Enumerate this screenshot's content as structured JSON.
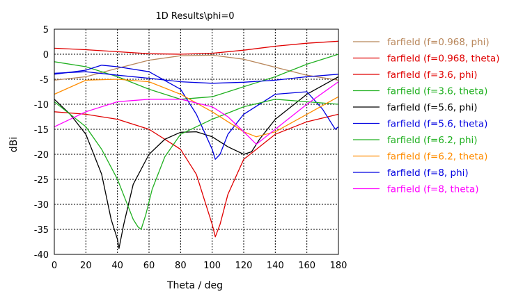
{
  "chart_data": {
    "type": "line",
    "title": "1D Results\\phi=0",
    "xlabel": "Theta / deg",
    "ylabel": "dBi",
    "xlim": [
      0,
      180
    ],
    "ylim": [
      -40,
      5
    ],
    "xticks": [
      0,
      20,
      40,
      60,
      80,
      100,
      120,
      140,
      160,
      180
    ],
    "yticks": [
      5,
      0,
      -5,
      -10,
      -15,
      -20,
      -25,
      -30,
      -35,
      -40
    ],
    "grid": true,
    "legend_position": "right",
    "series": [
      {
        "name": "farfield (f=0.968, phi)",
        "color": "#b8865a",
        "x": [
          0,
          20,
          40,
          60,
          80,
          100,
          120,
          140,
          160,
          180
        ],
        "y": [
          -5.2,
          -4.5,
          -2.8,
          -1.2,
          -0.3,
          -0.2,
          -1.0,
          -2.6,
          -4.2,
          -5.2
        ]
      },
      {
        "name": "farfield (f=0.968, theta)",
        "color": "#e00000",
        "x": [
          0,
          20,
          40,
          60,
          80,
          100,
          120,
          140,
          160,
          180
        ],
        "y": [
          1.2,
          0.9,
          0.5,
          0.1,
          0.0,
          0.2,
          0.8,
          1.6,
          2.2,
          2.6
        ]
      },
      {
        "name": "farfield (f=3.6, phi)",
        "color": "#e00000",
        "x": [
          0,
          20,
          40,
          60,
          80,
          90,
          95,
          100,
          102,
          105,
          110,
          120,
          140,
          160,
          180
        ],
        "y": [
          -11.5,
          -12.0,
          -13.0,
          -15.0,
          -19.0,
          -24.0,
          -29.0,
          -34.0,
          -36.5,
          -34.0,
          -28.0,
          -21.0,
          -16.0,
          -13.5,
          -12.0
        ]
      },
      {
        "name": "farfield (f=3.6, theta)",
        "color": "#20b020",
        "x": [
          0,
          20,
          40,
          60,
          80,
          100,
          120,
          140,
          160,
          180
        ],
        "y": [
          -1.5,
          -2.5,
          -4.5,
          -7.0,
          -9.0,
          -8.5,
          -6.5,
          -4.5,
          -2.0,
          0.0
        ]
      },
      {
        "name": "farfield (f=5.6, phi)",
        "color": "#000000",
        "x": [
          0,
          10,
          20,
          30,
          36,
          40,
          41,
          44,
          50,
          60,
          70,
          80,
          90,
          100,
          110,
          120,
          125,
          130,
          140,
          160,
          180
        ],
        "y": [
          -9.0,
          -12.0,
          -16.0,
          -24.0,
          -33.0,
          -37.0,
          -38.8,
          -34.0,
          -26.0,
          -20.0,
          -17.0,
          -15.6,
          -15.5,
          -16.5,
          -18.5,
          -20.0,
          -19.5,
          -17.0,
          -13.0,
          -8.0,
          -4.5
        ]
      },
      {
        "name": "farfield (f=5.6, theta)",
        "color": "#0000e0",
        "x": [
          0,
          20,
          30,
          40,
          60,
          80,
          90,
          100,
          102,
          105,
          110,
          120,
          140,
          160,
          170,
          178,
          180
        ],
        "y": [
          -4.0,
          -3.2,
          -2.2,
          -2.5,
          -3.5,
          -7.0,
          -12.0,
          -19.0,
          -21.0,
          -20.0,
          -16.0,
          -12.0,
          -8.0,
          -7.5,
          -11.0,
          -15.0,
          -14.5
        ]
      },
      {
        "name": "farfield (f=6.2, phi)",
        "color": "#20b020",
        "x": [
          0,
          10,
          20,
          30,
          40,
          45,
          50,
          53,
          55,
          58,
          62,
          70,
          80,
          100,
          120,
          140,
          160,
          180
        ],
        "y": [
          -9.5,
          -12.0,
          -14.5,
          -19.0,
          -25.0,
          -29.0,
          -33.0,
          -34.5,
          -35.0,
          -32.0,
          -27.0,
          -20.5,
          -16.0,
          -13.0,
          -10.5,
          -9.0,
          -9.5,
          -10.0
        ]
      },
      {
        "name": "farfield (f=6.2, theta)",
        "color": "#ff8c00",
        "x": [
          0,
          20,
          40,
          60,
          80,
          100,
          120,
          128,
          140,
          160,
          180
        ],
        "y": [
          -8.0,
          -5.2,
          -5.0,
          -5.5,
          -8.0,
          -11.5,
          -15.5,
          -16.5,
          -15.5,
          -12.0,
          -8.5
        ]
      },
      {
        "name": "farfield (f=8, phi)",
        "color": "#0000e0",
        "x": [
          0,
          20,
          40,
          60,
          80,
          100,
          120,
          140,
          160,
          180
        ],
        "y": [
          -3.8,
          -3.5,
          -4.2,
          -4.8,
          -5.5,
          -5.8,
          -5.6,
          -5.2,
          -4.5,
          -4.0
        ]
      },
      {
        "name": "farfield (f=8, theta)",
        "color": "#ff00ff",
        "x": [
          0,
          20,
          40,
          60,
          80,
          100,
          110,
          120,
          128,
          140,
          160,
          180
        ],
        "y": [
          -14.5,
          -11.5,
          -9.5,
          -9.0,
          -9.0,
          -10.5,
          -12.5,
          -15.5,
          -18.0,
          -15.0,
          -10.0,
          -5.5
        ]
      }
    ]
  }
}
